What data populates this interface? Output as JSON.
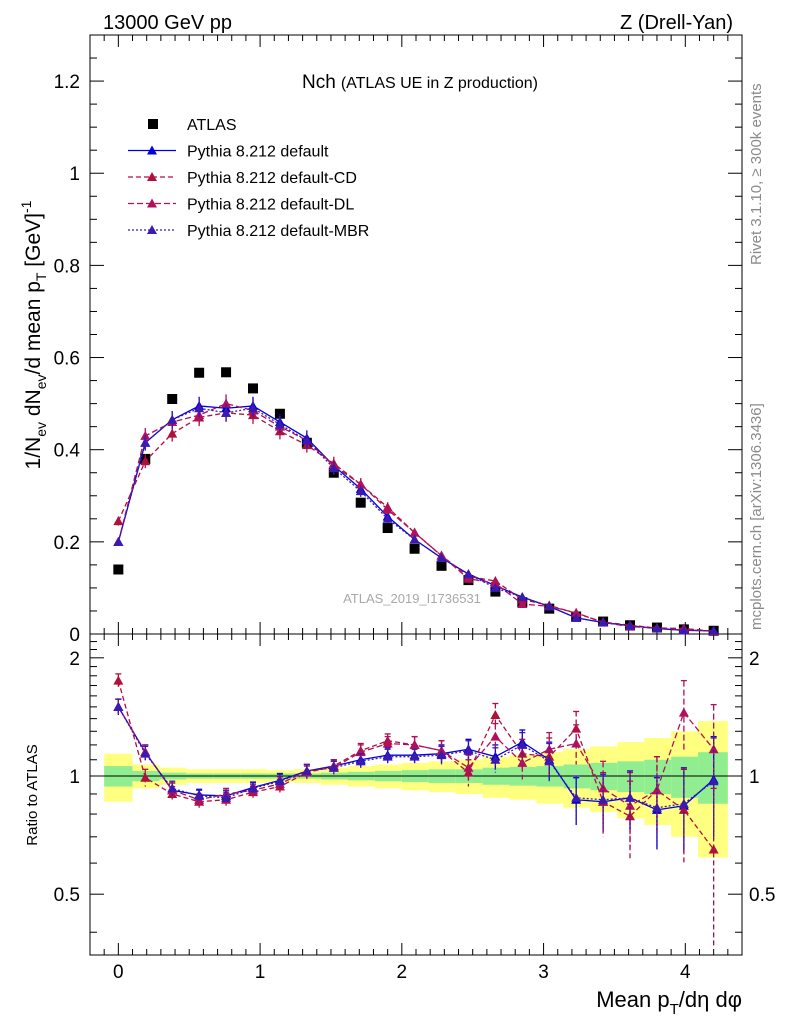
{
  "header": {
    "left": "13000 GeV pp",
    "right": "Z (Drell-Yan)"
  },
  "side_labels": {
    "rivet": "Rivet 3.1.10, ≥ 300k events",
    "mcplots": "mcplots.cern.ch [arXiv:1306.3436]"
  },
  "chart_data": {
    "type": "scatter",
    "title_main": "Nch",
    "title_sub": "(ATLAS UE in Z production)",
    "watermark": "ATLAS_2019_I1736531",
    "xlabel": "Mean p_T/dη dφ",
    "ylabel": "1/N_ev dN_ev/d mean p_T [GeV]^-1",
    "ratio_ylabel": "Ratio to ATLAS",
    "xlim": [
      -0.2,
      4.4
    ],
    "ylim": [
      0,
      1.3
    ],
    "ratio_ylim": [
      0.35,
      2.3
    ],
    "x_ticks": [
      "0",
      "1",
      "2",
      "3",
      "4"
    ],
    "y_ticks": [
      "0",
      "0.2",
      "0.4",
      "0.6",
      "0.8",
      "1",
      "1.2"
    ],
    "ratio_ticks": [
      "0.5",
      "1",
      "2"
    ],
    "x": [
      0.0,
      0.19,
      0.38,
      0.57,
      0.76,
      0.95,
      1.14,
      1.33,
      1.52,
      1.71,
      1.9,
      2.09,
      2.28,
      2.47,
      2.66,
      2.85,
      3.04,
      3.23,
      3.42,
      3.61,
      3.8,
      3.99,
      4.2
    ],
    "band_edges": [
      -0.1,
      0.1,
      0.29,
      0.48,
      0.67,
      0.86,
      1.05,
      1.24,
      1.43,
      1.62,
      1.81,
      2.0,
      2.19,
      2.38,
      2.57,
      2.76,
      2.95,
      3.14,
      3.33,
      3.52,
      3.71,
      3.9,
      4.09,
      4.3
    ],
    "band_inner": [
      0.06,
      0.03,
      0.02,
      0.015,
      0.015,
      0.015,
      0.015,
      0.015,
      0.02,
      0.025,
      0.03,
      0.035,
      0.04,
      0.04,
      0.05,
      0.055,
      0.06,
      0.07,
      0.08,
      0.09,
      0.1,
      0.12,
      0.15
    ],
    "band_outer": [
      0.14,
      0.07,
      0.05,
      0.04,
      0.04,
      0.04,
      0.035,
      0.04,
      0.05,
      0.06,
      0.07,
      0.08,
      0.09,
      0.1,
      0.12,
      0.13,
      0.15,
      0.17,
      0.19,
      0.22,
      0.25,
      0.3,
      0.38
    ],
    "series": [
      {
        "name": "ATLAS",
        "role": "data",
        "color": "#000000",
        "dash": "",
        "values": [
          0.14,
          0.38,
          0.51,
          0.567,
          0.568,
          0.533,
          0.478,
          0.415,
          0.35,
          0.285,
          0.23,
          0.185,
          0.148,
          0.117,
          0.092,
          0.069,
          0.055,
          0.038,
          0.027,
          0.019,
          0.014,
          0.01,
          0.007
        ]
      },
      {
        "name": "Pythia 8.212 default",
        "role": "mc",
        "color": "#0000dd",
        "dash": "",
        "values": [
          0.2,
          0.415,
          0.465,
          0.495,
          0.49,
          0.495,
          0.46,
          0.425,
          0.365,
          0.315,
          0.255,
          0.205,
          0.165,
          0.13,
          0.105,
          0.08,
          0.06,
          0.035,
          0.025,
          0.018,
          0.012,
          0.008,
          0.007
        ],
        "ratio": [
          1.5,
          1.15,
          0.92,
          0.895,
          0.89,
          0.935,
          0.975,
          1.03,
          1.06,
          1.1,
          1.13,
          1.13,
          1.14,
          1.17,
          1.12,
          1.22,
          1.1,
          0.87,
          0.86,
          0.88,
          0.82,
          0.84,
          0.98
        ],
        "ratio_err": [
          0.07,
          0.05,
          0.04,
          0.03,
          0.03,
          0.03,
          0.04,
          0.04,
          0.04,
          0.05,
          0.05,
          0.05,
          0.06,
          0.07,
          0.08,
          0.09,
          0.12,
          0.12,
          0.14,
          0.15,
          0.17,
          0.2,
          0.28
        ]
      },
      {
        "name": "Pythia 8.212 default-CD",
        "role": "mc",
        "color": "#b0103c",
        "dash": "5,3",
        "values": [
          0.245,
          0.375,
          0.435,
          0.47,
          0.48,
          0.475,
          0.44,
          0.41,
          0.37,
          0.325,
          0.275,
          0.22,
          0.17,
          0.125,
          0.115,
          0.075,
          0.062,
          0.045,
          0.026,
          0.019,
          0.013,
          0.009,
          0.006
        ],
        "ratio": [
          1.75,
          0.99,
          0.9,
          0.86,
          0.87,
          0.91,
          0.94,
          1.02,
          1.06,
          1.16,
          1.23,
          1.2,
          1.16,
          1.02,
          1.43,
          1.14,
          1.12,
          1.32,
          0.86,
          0.79,
          0.92,
          0.82,
          0.65
        ],
        "ratio_err": [
          0.07,
          0.05,
          0.04,
          0.03,
          0.03,
          0.03,
          0.04,
          0.04,
          0.04,
          0.05,
          0.05,
          0.06,
          0.07,
          0.08,
          0.1,
          0.1,
          0.13,
          0.14,
          0.16,
          0.18,
          0.2,
          0.22,
          0.28
        ]
      },
      {
        "name": "Pythia 8.212 default-DL",
        "role": "mc",
        "color": "#b0105c",
        "dash": "6,3",
        "values": [
          0.2,
          0.43,
          0.46,
          0.475,
          0.5,
          0.485,
          0.45,
          0.42,
          0.365,
          0.325,
          0.27,
          0.22,
          0.17,
          0.12,
          0.11,
          0.065,
          0.06,
          0.046,
          0.025,
          0.016,
          0.013,
          0.012,
          0.006
        ],
        "ratio": [
          1.5,
          1.15,
          0.92,
          0.87,
          0.9,
          0.92,
          0.955,
          1.03,
          1.05,
          1.15,
          1.21,
          1.2,
          1.16,
          1.05,
          1.26,
          1.08,
          1.17,
          1.21,
          0.93,
          0.84,
          0.92,
          1.45,
          1.17
        ],
        "ratio_err": [
          0.07,
          0.05,
          0.04,
          0.03,
          0.03,
          0.03,
          0.04,
          0.04,
          0.04,
          0.05,
          0.05,
          0.06,
          0.07,
          0.08,
          0.1,
          0.1,
          0.12,
          0.14,
          0.16,
          0.18,
          0.2,
          0.3,
          0.35
        ]
      },
      {
        "name": "Pythia 8.212 default-MBR",
        "role": "mc",
        "color": "#3a1ab0",
        "dash": "2,2",
        "values": [
          0.2,
          0.415,
          0.465,
          0.49,
          0.48,
          0.49,
          0.455,
          0.42,
          0.36,
          0.31,
          0.25,
          0.205,
          0.165,
          0.13,
          0.1,
          0.08,
          0.06,
          0.035,
          0.025,
          0.018,
          0.012,
          0.008,
          0.007
        ],
        "ratio": [
          1.5,
          1.14,
          0.93,
          0.89,
          0.88,
          0.93,
          0.97,
          1.03,
          1.05,
          1.09,
          1.12,
          1.12,
          1.13,
          1.16,
          1.1,
          1.2,
          1.09,
          0.88,
          0.87,
          0.88,
          0.83,
          0.85,
          0.97
        ],
        "ratio_err": [
          0.07,
          0.05,
          0.04,
          0.03,
          0.03,
          0.03,
          0.04,
          0.04,
          0.04,
          0.05,
          0.05,
          0.05,
          0.06,
          0.07,
          0.08,
          0.09,
          0.12,
          0.12,
          0.14,
          0.15,
          0.17,
          0.2,
          0.28
        ]
      }
    ]
  }
}
